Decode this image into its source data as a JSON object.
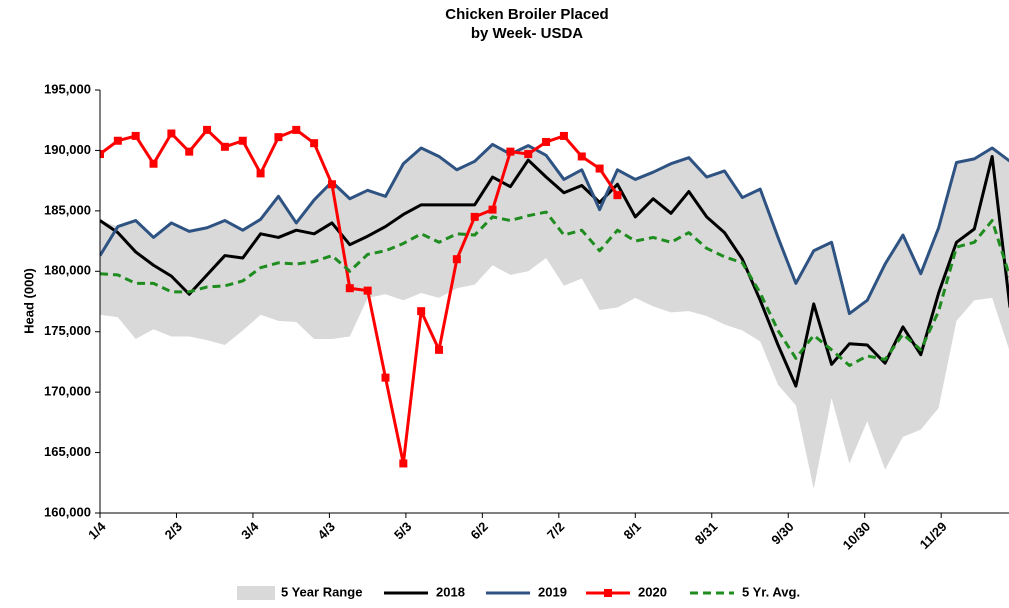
{
  "chart_data": {
    "type": "line",
    "title": [
      "Chicken Broiler Placed",
      "by Week- USDA"
    ],
    "y_label": "Head (000)",
    "x": [
      0,
      7,
      14,
      21,
      28,
      35,
      42,
      49,
      56,
      63,
      70,
      77,
      84,
      91,
      98,
      105,
      112,
      119,
      126,
      133,
      140,
      147,
      154,
      161,
      168,
      175,
      182,
      189,
      196,
      203,
      210,
      217,
      224,
      231,
      238,
      245,
      252,
      259,
      266,
      273,
      280,
      287,
      294,
      301,
      308,
      315,
      322,
      329,
      336,
      343,
      350,
      357
    ],
    "xlim": [
      0,
      357
    ],
    "xticks": [
      {
        "value": 0,
        "label": "1/4"
      },
      {
        "value": 30,
        "label": "2/3"
      },
      {
        "value": 60,
        "label": "3/4"
      },
      {
        "value": 90,
        "label": "4/3"
      },
      {
        "value": 120,
        "label": "5/3"
      },
      {
        "value": 150,
        "label": "6/2"
      },
      {
        "value": 180,
        "label": "7/2"
      },
      {
        "value": 210,
        "label": "8/1"
      },
      {
        "value": 240,
        "label": "8/31"
      },
      {
        "value": 270,
        "label": "9/30"
      },
      {
        "value": 300,
        "label": "10/30"
      },
      {
        "value": 330,
        "label": "11/29"
      }
    ],
    "ylim": [
      160000,
      195000
    ],
    "yticks": [
      {
        "value": 160000,
        "label": "160,000"
      },
      {
        "value": 165000,
        "label": "165,000"
      },
      {
        "value": 170000,
        "label": "170,000"
      },
      {
        "value": 175000,
        "label": "175,000"
      },
      {
        "value": 180000,
        "label": "180,000"
      },
      {
        "value": 185000,
        "label": "185,000"
      },
      {
        "value": 190000,
        "label": "190,000"
      },
      {
        "value": 195000,
        "label": "195,000"
      }
    ],
    "series": [
      {
        "name": "5 Year Range",
        "kind": "range",
        "color": "#d9d9d9",
        "high": [
          184200,
          183700,
          184200,
          182800,
          184000,
          183300,
          183600,
          184200,
          183400,
          184300,
          186200,
          184000,
          185900,
          187400,
          186000,
          186700,
          186200,
          188900,
          190200,
          189500,
          188400,
          189100,
          190500,
          189700,
          190400,
          189600,
          187600,
          188400,
          185700,
          188400,
          187600,
          188200,
          188900,
          189400,
          187800,
          188300,
          186100,
          186800,
          182800,
          179000,
          181700,
          182400,
          176500,
          177600,
          180600,
          183000,
          179800,
          183600,
          189000,
          189300,
          190200,
          189100
        ],
        "low": [
          176400,
          176200,
          174400,
          175200,
          174600,
          174600,
          174300,
          173900,
          175100,
          176400,
          175900,
          175800,
          174400,
          174400,
          174600,
          177800,
          178100,
          177600,
          178200,
          177800,
          178600,
          178900,
          180500,
          179700,
          180000,
          181100,
          178800,
          179400,
          176800,
          177000,
          177800,
          177100,
          176600,
          176700,
          176300,
          175600,
          175100,
          174200,
          170600,
          168900,
          162000,
          169500,
          164100,
          167600,
          163600,
          166300,
          166900,
          168700,
          175900,
          177600,
          177800,
          173300
        ]
      },
      {
        "name": "2018",
        "kind": "line",
        "color": "#000000",
        "values": [
          184200,
          183200,
          181600,
          180500,
          179600,
          178100,
          179700,
          181300,
          181100,
          183100,
          182800,
          183400,
          183100,
          184000,
          182200,
          182900,
          183700,
          184700,
          185500,
          185500,
          185500,
          185500,
          187800,
          187000,
          189200,
          187800,
          186500,
          187100,
          185700,
          187200,
          184500,
          186000,
          184800,
          186600,
          184500,
          183200,
          181000,
          177600,
          173900,
          170500,
          177300,
          172300,
          174000,
          173900,
          172400,
          175400,
          173100,
          178200,
          182400,
          183500,
          189500,
          177000
        ]
      },
      {
        "name": "2019",
        "kind": "line",
        "color": "#2e5383",
        "values": [
          181300,
          183700,
          184200,
          182800,
          184000,
          183300,
          183600,
          184200,
          183400,
          184300,
          186200,
          184000,
          185900,
          187400,
          186000,
          186700,
          186200,
          188900,
          190200,
          189500,
          188400,
          189100,
          190500,
          189700,
          190400,
          189600,
          187600,
          188400,
          185100,
          188400,
          187600,
          188200,
          188900,
          189400,
          187800,
          188300,
          186100,
          186800,
          182800,
          179000,
          181700,
          182400,
          176500,
          177600,
          180600,
          183000,
          179800,
          183600,
          189000,
          189300,
          190200,
          189100
        ]
      },
      {
        "name": "2020",
        "kind": "marker-line",
        "color": "#ff0000",
        "values": [
          189700,
          190800,
          191200,
          188900,
          191400,
          189900,
          191700,
          190300,
          190800,
          188100,
          191100,
          191700,
          190600,
          187200,
          178600,
          178400,
          171200,
          164100,
          176700,
          173500,
          181000,
          184500,
          185100,
          189900,
          189700,
          190700,
          191200,
          189500,
          188500,
          186300,
          null,
          null,
          null,
          null,
          null,
          null,
          null,
          null,
          null,
          null,
          null,
          null,
          null,
          null,
          null,
          null,
          null,
          null,
          null,
          null,
          null,
          null
        ]
      },
      {
        "name": "5 Yr. Avg.",
        "kind": "dashed",
        "color": "#1e8c1e",
        "values": [
          179800,
          179700,
          179000,
          179000,
          178300,
          178300,
          178700,
          178800,
          179200,
          180300,
          180700,
          180600,
          180800,
          181300,
          180000,
          181400,
          181700,
          182300,
          183100,
          182400,
          183100,
          183000,
          184500,
          184200,
          184600,
          184900,
          183000,
          183400,
          181700,
          183400,
          182500,
          182800,
          182400,
          183200,
          181900,
          181200,
          180700,
          178200,
          175100,
          172800,
          174700,
          173500,
          172200,
          173000,
          172700,
          174800,
          173500,
          176700,
          182000,
          182400,
          184200,
          179500
        ]
      }
    ]
  }
}
